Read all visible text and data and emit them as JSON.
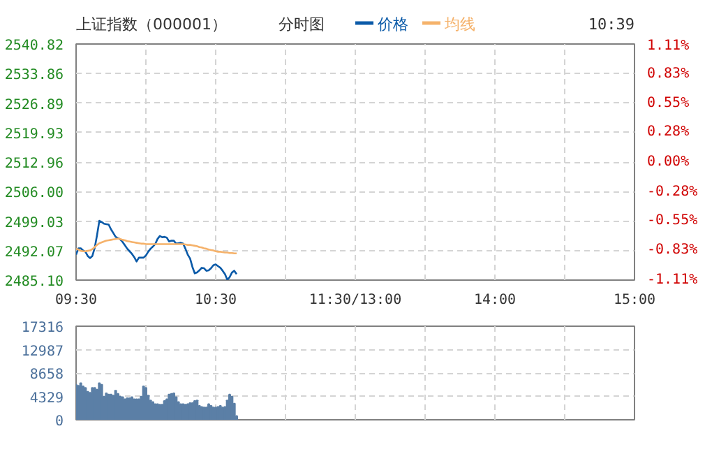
{
  "chart_data": [
    {
      "type": "line",
      "title": "上证指数（000001）",
      "subtitle": "分时图",
      "annotations": [
        "10:39"
      ],
      "legend": "top",
      "grid": true,
      "line_style": "solid",
      "categories": [
        "09:30",
        null,
        null,
        null,
        null,
        null,
        null,
        null,
        null,
        null,
        null,
        null,
        null,
        null,
        null,
        null,
        null,
        null,
        null,
        null,
        null,
        null,
        null,
        null,
        null,
        null,
        null,
        null,
        null,
        null,
        null,
        null,
        null,
        null,
        null,
        null,
        null,
        null,
        null,
        null,
        null,
        null,
        null,
        null,
        null,
        null,
        null,
        null,
        null,
        null,
        null,
        null,
        null,
        null,
        null,
        null,
        null,
        null,
        null,
        null,
        "10:30",
        null,
        null,
        null,
        null,
        null,
        null,
        null,
        null,
        null,
        null,
        null,
        null,
        null,
        null,
        null,
        null,
        null,
        null,
        null,
        null,
        null,
        null,
        null,
        null,
        null,
        null,
        null,
        null,
        null,
        null,
        null,
        null,
        null,
        null,
        null,
        null,
        null,
        null,
        null,
        null,
        null,
        null,
        null,
        null,
        null,
        null,
        null,
        null,
        null,
        null,
        null,
        null,
        null,
        null,
        null,
        null,
        null,
        null,
        null,
        "11:30/13:00",
        null,
        null,
        null,
        null,
        null,
        null,
        null,
        null,
        null,
        null,
        null,
        null,
        null,
        null,
        null,
        null,
        null,
        null,
        null,
        null,
        null,
        null,
        null,
        null,
        null,
        null,
        null,
        null,
        null,
        null,
        null,
        null,
        null,
        null,
        null,
        null,
        null,
        null,
        null,
        null,
        null,
        null,
        null,
        null,
        null,
        null,
        null,
        null,
        null,
        null,
        null,
        null,
        null,
        null,
        null,
        null,
        null,
        null,
        null,
        "14:00",
        null,
        null,
        null,
        null,
        null,
        null,
        null,
        null,
        null,
        null,
        null,
        null,
        null,
        null,
        null,
        null,
        null,
        null,
        null,
        null,
        null,
        null,
        null,
        null,
        null,
        null,
        null,
        null,
        null,
        null,
        null,
        null,
        null,
        null,
        null,
        null,
        null,
        null,
        null,
        null,
        null,
        null,
        null,
        null,
        null,
        null,
        null,
        null,
        null,
        null,
        null,
        null,
        null,
        null,
        null,
        null,
        null,
        null,
        null,
        "15:00"
      ],
      "ylim": [
        2485.1,
        2540.82
      ],
      "yticks": [
        {
          "value": 2485.1,
          "label": "2485.10"
        },
        2492.07,
        2499.03,
        {
          "value": 2506.0,
          "label": "2506.00"
        },
        2512.96,
        2519.93,
        2526.89,
        2533.86,
        2540.82
      ],
      "y2lim": [
        -1.11,
        1.11
      ],
      "y2ticks": [
        {
          "value": -1.11,
          "label": "-1.11%"
        },
        {
          "value": -0.83,
          "label": "-0.83%"
        },
        {
          "value": -0.55,
          "label": "-0.55%"
        },
        {
          "value": -0.28,
          "label": "-0.28%"
        },
        {
          "value": 0,
          "label": "0.00%"
        },
        {
          "value": 0.28,
          "label": "0.28%"
        },
        {
          "value": 0.55,
          "label": "0.55%"
        },
        {
          "value": 0.83,
          "label": "0.83%"
        },
        {
          "value": 1.11,
          "label": "1.11%"
        }
      ],
      "series": [
        {
          "name": "价格",
          "color": "#0b5aa8",
          "values": [
            2491.1,
            2492.6,
            2492.6,
            2492.1,
            2491.8,
            2490.8,
            2490.3,
            2490.8,
            2492.7,
            2495.7,
            2499.1,
            2498.8,
            2498.4,
            2498.3,
            2498.2,
            2497.1,
            2496.2,
            2495.3,
            2495.0,
            2494.7,
            2494.1,
            2493.3,
            2492.5,
            2491.9,
            2491.3,
            2490.5,
            2489.5,
            2490.4,
            2490.4,
            2490.4,
            2490.9,
            2491.8,
            2492.5,
            2493.0,
            2493.6,
            2494.8,
            2495.5,
            2495.2,
            2495.3,
            2495.1,
            2494.2,
            2494.4,
            2494.4,
            2493.7,
            2493.8,
            2493.9,
            2493.7,
            2492.5,
            2491.1,
            2490.2,
            2488.2,
            2486.7,
            2486.9,
            2487.4,
            2488.0,
            2487.9,
            2487.3,
            2487.4,
            2487.9,
            2488.6,
            2488.8,
            2488.4,
            2488.0,
            2487.3,
            2486.5,
            2485.2,
            2485.8,
            2486.9,
            2487.3,
            2486.5,
            null,
            null,
            null,
            null,
            null,
            null,
            null,
            null,
            null,
            null,
            null,
            null,
            null,
            null,
            null,
            null,
            null,
            null,
            null,
            null,
            null,
            null,
            null,
            null,
            null,
            null,
            null,
            null,
            null,
            null,
            null,
            null,
            null,
            null,
            null,
            null,
            null,
            null,
            null,
            null,
            null,
            null,
            null,
            null,
            null,
            null,
            null,
            null,
            null,
            null,
            null,
            null,
            null,
            null,
            null,
            null,
            null,
            null,
            null,
            null,
            null,
            null,
            null,
            null,
            null,
            null,
            null,
            null,
            null,
            null,
            null,
            null,
            null,
            null,
            null,
            null,
            null,
            null,
            null,
            null,
            null,
            null,
            null,
            null,
            null,
            null,
            null,
            null,
            null,
            null,
            null,
            null,
            null,
            null,
            null,
            null,
            null,
            null,
            null,
            null,
            null,
            null,
            null,
            null,
            null,
            null,
            null,
            null,
            null,
            null,
            null,
            null,
            null,
            null,
            null,
            null,
            null,
            null,
            null,
            null,
            null,
            null,
            null,
            null,
            null,
            null,
            null,
            null,
            null,
            null,
            null,
            null,
            null,
            null,
            null,
            null,
            null,
            null,
            null,
            null,
            null,
            null,
            null,
            null,
            null,
            null,
            null,
            null,
            null,
            null,
            null,
            null,
            null,
            null,
            null,
            null,
            null,
            null,
            null,
            null,
            null,
            null,
            null,
            null,
            null,
            null,
            null,
            null,
            null,
            null,
            null
          ]
        },
        {
          "name": "均线",
          "color": "#f5b26b",
          "values": [
            2492.5,
            2492.3,
            2492.0,
            2491.9,
            2491.9,
            2492.0,
            2492.1,
            2492.4,
            2492.9,
            2493.4,
            2493.8,
            2494.0,
            2494.2,
            2494.4,
            2494.5,
            2494.6,
            2494.7,
            2494.8,
            2494.9,
            2494.8,
            2494.6,
            2494.5,
            2494.3,
            2494.2,
            2494.1,
            2494.0,
            2493.9,
            2493.8,
            2493.7,
            2493.7,
            2493.6,
            2493.6,
            2493.6,
            2493.6,
            2493.6,
            2493.6,
            2493.6,
            2493.6,
            2493.6,
            2493.6,
            2493.6,
            2493.6,
            2493.6,
            2493.6,
            2493.6,
            2493.6,
            2493.6,
            2493.5,
            2493.4,
            2493.4,
            2493.3,
            2493.2,
            2493.1,
            2492.9,
            2492.8,
            2492.6,
            2492.5,
            2492.3,
            2492.2,
            2492.1,
            2491.9,
            2491.8,
            2491.8,
            2491.7,
            2491.6,
            2491.6,
            2491.5,
            2491.5,
            2491.4,
            2491.4,
            null,
            null,
            null,
            null,
            null,
            null,
            null,
            null,
            null,
            null,
            null,
            null,
            null,
            null,
            null,
            null,
            null,
            null,
            null,
            null,
            null,
            null,
            null,
            null,
            null,
            null,
            null,
            null,
            null,
            null,
            null,
            null,
            null,
            null,
            null,
            null,
            null,
            null,
            null,
            null,
            null,
            null,
            null,
            null,
            null,
            null,
            null,
            null,
            null,
            null,
            null,
            null,
            null,
            null,
            null,
            null,
            null,
            null,
            null,
            null,
            null,
            null,
            null,
            null,
            null,
            null,
            null,
            null,
            null,
            null,
            null,
            null,
            null,
            null,
            null,
            null,
            null,
            null,
            null,
            null,
            null,
            null,
            null,
            null,
            null,
            null,
            null,
            null,
            null,
            null,
            null,
            null,
            null,
            null,
            null,
            null,
            null,
            null,
            null,
            null,
            null,
            null,
            null,
            null,
            null,
            null,
            null,
            null,
            null,
            null,
            null,
            null,
            null,
            null,
            null,
            null,
            null,
            null,
            null,
            null,
            null,
            null,
            null,
            null,
            null,
            null,
            null,
            null,
            null,
            null,
            null,
            null,
            null,
            null,
            null,
            null,
            null,
            null,
            null,
            null,
            null,
            null,
            null,
            null,
            null,
            null,
            null,
            null,
            null,
            null,
            null,
            null,
            null,
            null,
            null,
            null,
            null,
            null,
            null,
            null,
            null,
            null,
            null,
            null,
            null,
            null,
            null,
            null,
            null,
            null,
            null
          ]
        }
      ]
    },
    {
      "type": "bar",
      "tick_labels": "y",
      "grid": true,
      "categories": [
        null,
        null,
        null,
        null,
        null,
        null,
        null,
        null,
        null,
        null,
        null,
        null,
        null,
        null,
        null,
        null,
        null,
        null,
        null,
        null,
        null,
        null,
        null,
        null,
        null,
        null,
        null,
        null,
        null,
        null,
        null,
        null,
        null,
        null,
        null,
        null,
        null,
        null,
        null,
        null,
        null,
        null,
        null,
        null,
        null,
        null,
        null,
        null,
        null,
        null,
        null,
        null,
        null,
        null,
        null,
        null,
        null,
        null,
        null,
        null,
        null,
        null,
        null,
        null,
        null,
        null,
        null,
        null,
        null,
        null,
        null,
        null,
        null,
        null,
        null,
        null,
        null,
        null,
        null,
        null,
        null,
        null,
        null,
        null,
        null,
        null,
        null,
        null,
        null,
        null,
        null,
        null,
        null,
        null,
        null,
        null,
        null,
        null,
        null,
        null,
        null,
        null,
        null,
        null,
        null,
        null,
        null,
        null,
        null,
        null,
        null,
        null,
        null,
        null,
        null,
        null,
        null,
        null,
        null,
        null,
        null,
        null,
        null,
        null,
        null,
        null,
        null,
        null,
        null,
        null,
        null,
        null,
        null,
        null,
        null,
        null,
        null,
        null,
        null,
        null,
        null,
        null,
        null,
        null,
        null,
        null,
        null,
        null,
        null,
        null,
        null,
        null,
        null,
        null,
        null,
        null,
        null,
        null,
        null,
        null,
        null,
        null,
        null,
        null,
        null,
        null,
        null,
        null,
        null,
        null,
        null,
        null,
        null,
        null,
        null,
        null,
        null,
        null,
        null,
        null,
        null,
        null,
        null,
        null,
        null,
        null,
        null,
        null,
        null,
        null,
        null,
        null,
        null,
        null,
        null,
        null,
        null,
        null,
        null,
        null,
        null,
        null,
        null,
        null,
        null,
        null,
        null,
        null,
        null,
        null,
        null,
        null,
        null,
        null,
        null,
        null,
        null,
        null,
        null,
        null,
        null,
        null,
        null,
        null,
        null,
        null,
        null,
        null,
        null,
        null,
        null,
        null,
        null,
        null,
        null,
        null,
        null,
        null,
        null,
        null,
        null
      ],
      "ylim": [
        0,
        17316
      ],
      "yticks": [
        0,
        4329,
        8658,
        12987,
        17316
      ],
      "series": [
        {
          "color": "#5b7fa6",
          "values": [
            6500,
            6300,
            6800,
            6200,
            5900,
            5200,
            5000,
            5900,
            5900,
            5600,
            6800,
            6500,
            4300,
            4900,
            4700,
            4700,
            4500,
            5400,
            4800,
            4300,
            4200,
            3800,
            4000,
            4000,
            4200,
            3800,
            3800,
            3800,
            4300,
            6200,
            5900,
            4500,
            3600,
            3300,
            2900,
            2900,
            2800,
            2800,
            3500,
            3800,
            4700,
            4800,
            4900,
            4200,
            3300,
            2900,
            2900,
            2800,
            2900,
            3100,
            3100,
            3500,
            3600,
            2600,
            2400,
            2300,
            2300,
            2900,
            2600,
            2300,
            2300,
            2400,
            2600,
            2300,
            2400,
            3600,
            4700,
            4300,
            3000,
            700,
            null,
            null,
            null,
            null,
            null,
            null,
            null,
            null,
            null,
            null,
            null,
            null,
            null,
            null,
            null,
            null,
            null,
            null,
            null,
            null,
            null,
            null,
            null,
            null,
            null,
            null,
            null,
            null,
            null,
            null,
            null,
            null,
            null,
            null,
            null,
            null,
            null,
            null,
            null,
            null,
            null,
            null,
            null,
            null,
            null,
            null,
            null,
            null,
            null,
            null,
            null,
            null,
            null,
            null,
            null,
            null,
            null,
            null,
            null,
            null,
            null,
            null,
            null,
            null,
            null,
            null,
            null,
            null,
            null,
            null,
            null,
            null,
            null,
            null,
            null,
            null,
            null,
            null,
            null,
            null,
            null,
            null,
            null,
            null,
            null,
            null,
            null,
            null,
            null,
            null,
            null,
            null,
            null,
            null,
            null,
            null,
            null,
            null,
            null,
            null,
            null,
            null,
            null,
            null,
            null,
            null,
            null,
            null,
            null,
            null,
            null,
            null,
            null,
            null,
            null,
            null,
            null,
            null,
            null,
            null,
            null,
            null,
            null,
            null,
            null,
            null,
            null,
            null,
            null,
            null,
            null,
            null,
            null,
            null,
            null,
            null,
            null,
            null,
            null,
            null,
            null,
            null,
            null,
            null,
            null,
            null,
            null,
            null,
            null,
            null,
            null,
            null,
            null,
            null,
            null,
            null,
            null,
            null,
            null,
            null,
            null,
            null,
            null,
            null,
            null,
            null,
            null,
            null,
            null,
            null,
            null
          ]
        }
      ]
    }
  ]
}
